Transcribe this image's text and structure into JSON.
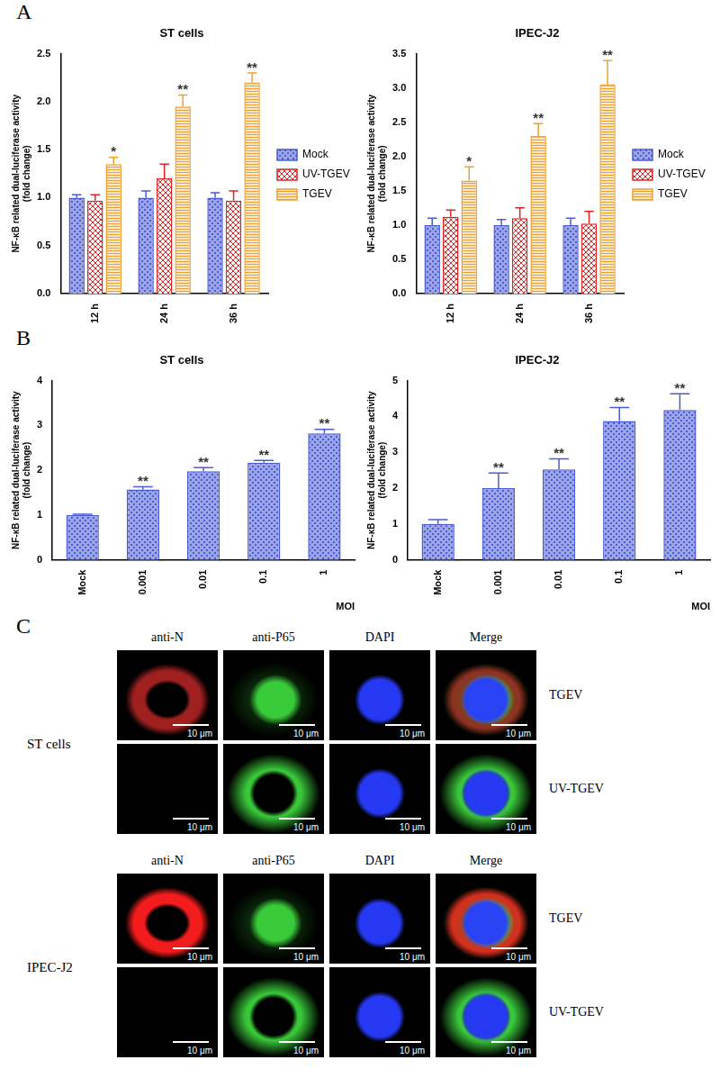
{
  "panel_labels": [
    "A",
    "B",
    "C"
  ],
  "chart_data": [
    {
      "type": "bar",
      "title": "ST cells",
      "ylabel": [
        "NF-κB related dual-luciferase activity",
        "(fold change)"
      ],
      "categories": [
        "12 h",
        "24 h",
        "36 h"
      ],
      "series": [
        {
          "name": "Mock",
          "color": "#4a5bd4",
          "values": [
            1.0,
            1.0,
            1.0
          ],
          "errors": [
            0.03,
            0.07,
            0.05
          ]
        },
        {
          "name": "UV-TGEV",
          "color": "#e02424",
          "values": [
            0.97,
            1.2,
            0.97
          ],
          "errors": [
            0.06,
            0.15,
            0.1
          ]
        },
        {
          "name": "TGEV",
          "color": "#f0a030",
          "values": [
            1.35,
            1.95,
            2.2
          ],
          "errors": [
            0.07,
            0.12,
            0.1
          ],
          "annotations": [
            "*",
            "**",
            "**"
          ]
        }
      ],
      "ylim": [
        0,
        2.5
      ],
      "yticks": [
        {
          "value": 0,
          "label": "0.0"
        },
        0.5,
        {
          "value": 1,
          "label": "1.0"
        },
        1.5,
        {
          "value": 2,
          "label": "2.0"
        },
        2.5
      ],
      "legend": "right",
      "grid": false
    },
    {
      "type": "bar",
      "title": "IPEC-J2",
      "ylabel": [
        "NF-κB related dual-luciferase activity",
        "(fold change)"
      ],
      "categories": [
        "12 h",
        "24 h",
        "36 h"
      ],
      "series": [
        {
          "name": "Mock",
          "color": "#4a5bd4",
          "values": [
            1.0,
            1.0,
            1.0
          ],
          "errors": [
            0.1,
            0.08,
            0.1
          ]
        },
        {
          "name": "UV-TGEV",
          "color": "#e02424",
          "values": [
            1.12,
            1.1,
            1.02
          ],
          "errors": [
            0.1,
            0.15,
            0.18
          ]
        },
        {
          "name": "TGEV",
          "color": "#f0a030",
          "values": [
            1.65,
            2.3,
            3.05
          ],
          "errors": [
            0.2,
            0.18,
            0.35
          ],
          "annotations": [
            "*",
            "**",
            "**"
          ]
        }
      ],
      "ylim": [
        0,
        3.5
      ],
      "yticks": [
        {
          "value": 0,
          "label": "0.0"
        },
        0.5,
        {
          "value": 1,
          "label": "1.0"
        },
        1.5,
        {
          "value": 2,
          "label": "2.0"
        },
        2.5,
        {
          "value": 3,
          "label": "3.0"
        },
        3.5
      ],
      "legend": "right",
      "grid": false
    },
    {
      "type": "bar",
      "title": "ST cells",
      "ylabel": [
        "NF-κB related dual-luciferase activity",
        "(fold change)"
      ],
      "xlabel": "MOI",
      "categories": [
        "Mock",
        "0.001",
        "0.01",
        "0.1",
        "1"
      ],
      "values": [
        1.0,
        1.57,
        1.98,
        2.17,
        2.82
      ],
      "errors": [
        0.02,
        0.06,
        0.08,
        0.05,
        0.09
      ],
      "annotations": [
        null,
        "**",
        "**",
        "**",
        "**"
      ],
      "color": "#4a5bd4",
      "ylim": [
        0,
        4
      ],
      "yticks": [
        0,
        1,
        2,
        3,
        4
      ],
      "grid": false
    },
    {
      "type": "bar",
      "title": "IPEC-J2",
      "ylabel": [
        "NF-κB related dual-luciferase activity",
        "(fold change)"
      ],
      "xlabel": "MOI",
      "categories": [
        "Mock",
        "0.001",
        "0.01",
        "0.1",
        "1"
      ],
      "values": [
        1.0,
        2.0,
        2.52,
        3.87,
        4.18
      ],
      "errors": [
        0.12,
        0.42,
        0.3,
        0.38,
        0.45
      ],
      "annotations": [
        null,
        "**",
        "**",
        "**",
        "**"
      ],
      "color": "#4a5bd4",
      "ylim": [
        0,
        5
      ],
      "yticks": [
        0,
        1,
        2,
        3,
        4,
        5
      ],
      "grid": false
    }
  ],
  "image_panel": {
    "columns": [
      "anti-N",
      "anti-P65",
      "DAPI",
      "Merge"
    ],
    "groups": [
      {
        "cell": "ST cells",
        "rows": [
          "TGEV",
          "UV-TGEV"
        ]
      },
      {
        "cell": "IPEC-J2",
        "rows": [
          "TGEV",
          "UV-TGEV"
        ]
      }
    ],
    "scale_bar": "10 μm"
  }
}
